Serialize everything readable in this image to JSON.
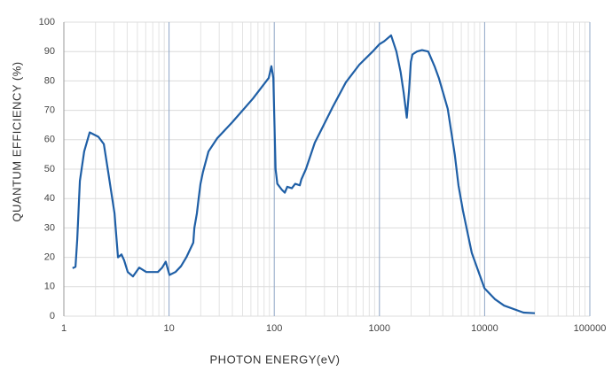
{
  "chart_data": {
    "type": "line",
    "x_label": "PHOTON ENERGY(eV)",
    "y_label": "QUANTUM EFFICIENCY (%)",
    "x": [
      1.21,
      1.29,
      1.34,
      1.42,
      1.56,
      1.76,
      2.13,
      2.4,
      2.64,
      2.8,
      3.03,
      3.27,
      3.53,
      3.74,
      4.05,
      4.54,
      5.2,
      6.08,
      7.83,
      8.6,
      9.3,
      10.1,
      11.5,
      13,
      14.6,
      17,
      17.4,
      18.4,
      19.1,
      19.9,
      21,
      23.7,
      28.7,
      40,
      62.7,
      88.6,
      94,
      98,
      103,
      107,
      118,
      126,
      133,
      147,
      158,
      175,
      181,
      200,
      243,
      268,
      358,
      479,
      643,
      862,
      1000,
      1110,
      1290,
      1450,
      1590,
      1700,
      1820,
      1910,
      1990,
      2060,
      2270,
      2540,
      2910,
      3340,
      3670,
      4460,
      5200,
      5640,
      6210,
      7550,
      9960,
      12600,
      15300,
      23400,
      30000
    ],
    "values": [
      16.3,
      16.8,
      26,
      46,
      56,
      62.5,
      61,
      58.5,
      49,
      43,
      35,
      20,
      21,
      19,
      15,
      13.5,
      16.5,
      15,
      15,
      16.5,
      18.5,
      14,
      15,
      17,
      20,
      25,
      30,
      35,
      40,
      45,
      49,
      56,
      60.5,
      66,
      74,
      81,
      85,
      81,
      50,
      45,
      43,
      42,
      44,
      43.5,
      45,
      44.5,
      46.5,
      50,
      59,
      62,
      71,
      79.5,
      85.5,
      90,
      92.5,
      93.5,
      95.5,
      90,
      83,
      76,
      67.5,
      76.5,
      86.5,
      89,
      90,
      90.5,
      90,
      85,
      81,
      70.5,
      55,
      44.5,
      36,
      21.5,
      9.5,
      5.7,
      3.6,
      1.2,
      1
    ],
    "color": "#1f5fa6",
    "x_log_scale": true,
    "xlim": [
      1,
      100000
    ],
    "xticks": [
      1,
      10,
      100,
      1000,
      10000,
      100000
    ],
    "xticks_minor": [
      2,
      3,
      4,
      5,
      6,
      7,
      8,
      9,
      20,
      30,
      40,
      50,
      60,
      70,
      80,
      90,
      200,
      300,
      400,
      500,
      600,
      700,
      800,
      900,
      2000,
      3000,
      4000,
      5000,
      6000,
      7000,
      8000,
      9000,
      20000,
      30000,
      40000,
      50000,
      60000,
      70000,
      80000,
      90000
    ],
    "ylim": [
      0,
      100
    ],
    "yticks": [
      0,
      10,
      20,
      30,
      40,
      50,
      60,
      70,
      80,
      90,
      100
    ],
    "grid": true
  }
}
